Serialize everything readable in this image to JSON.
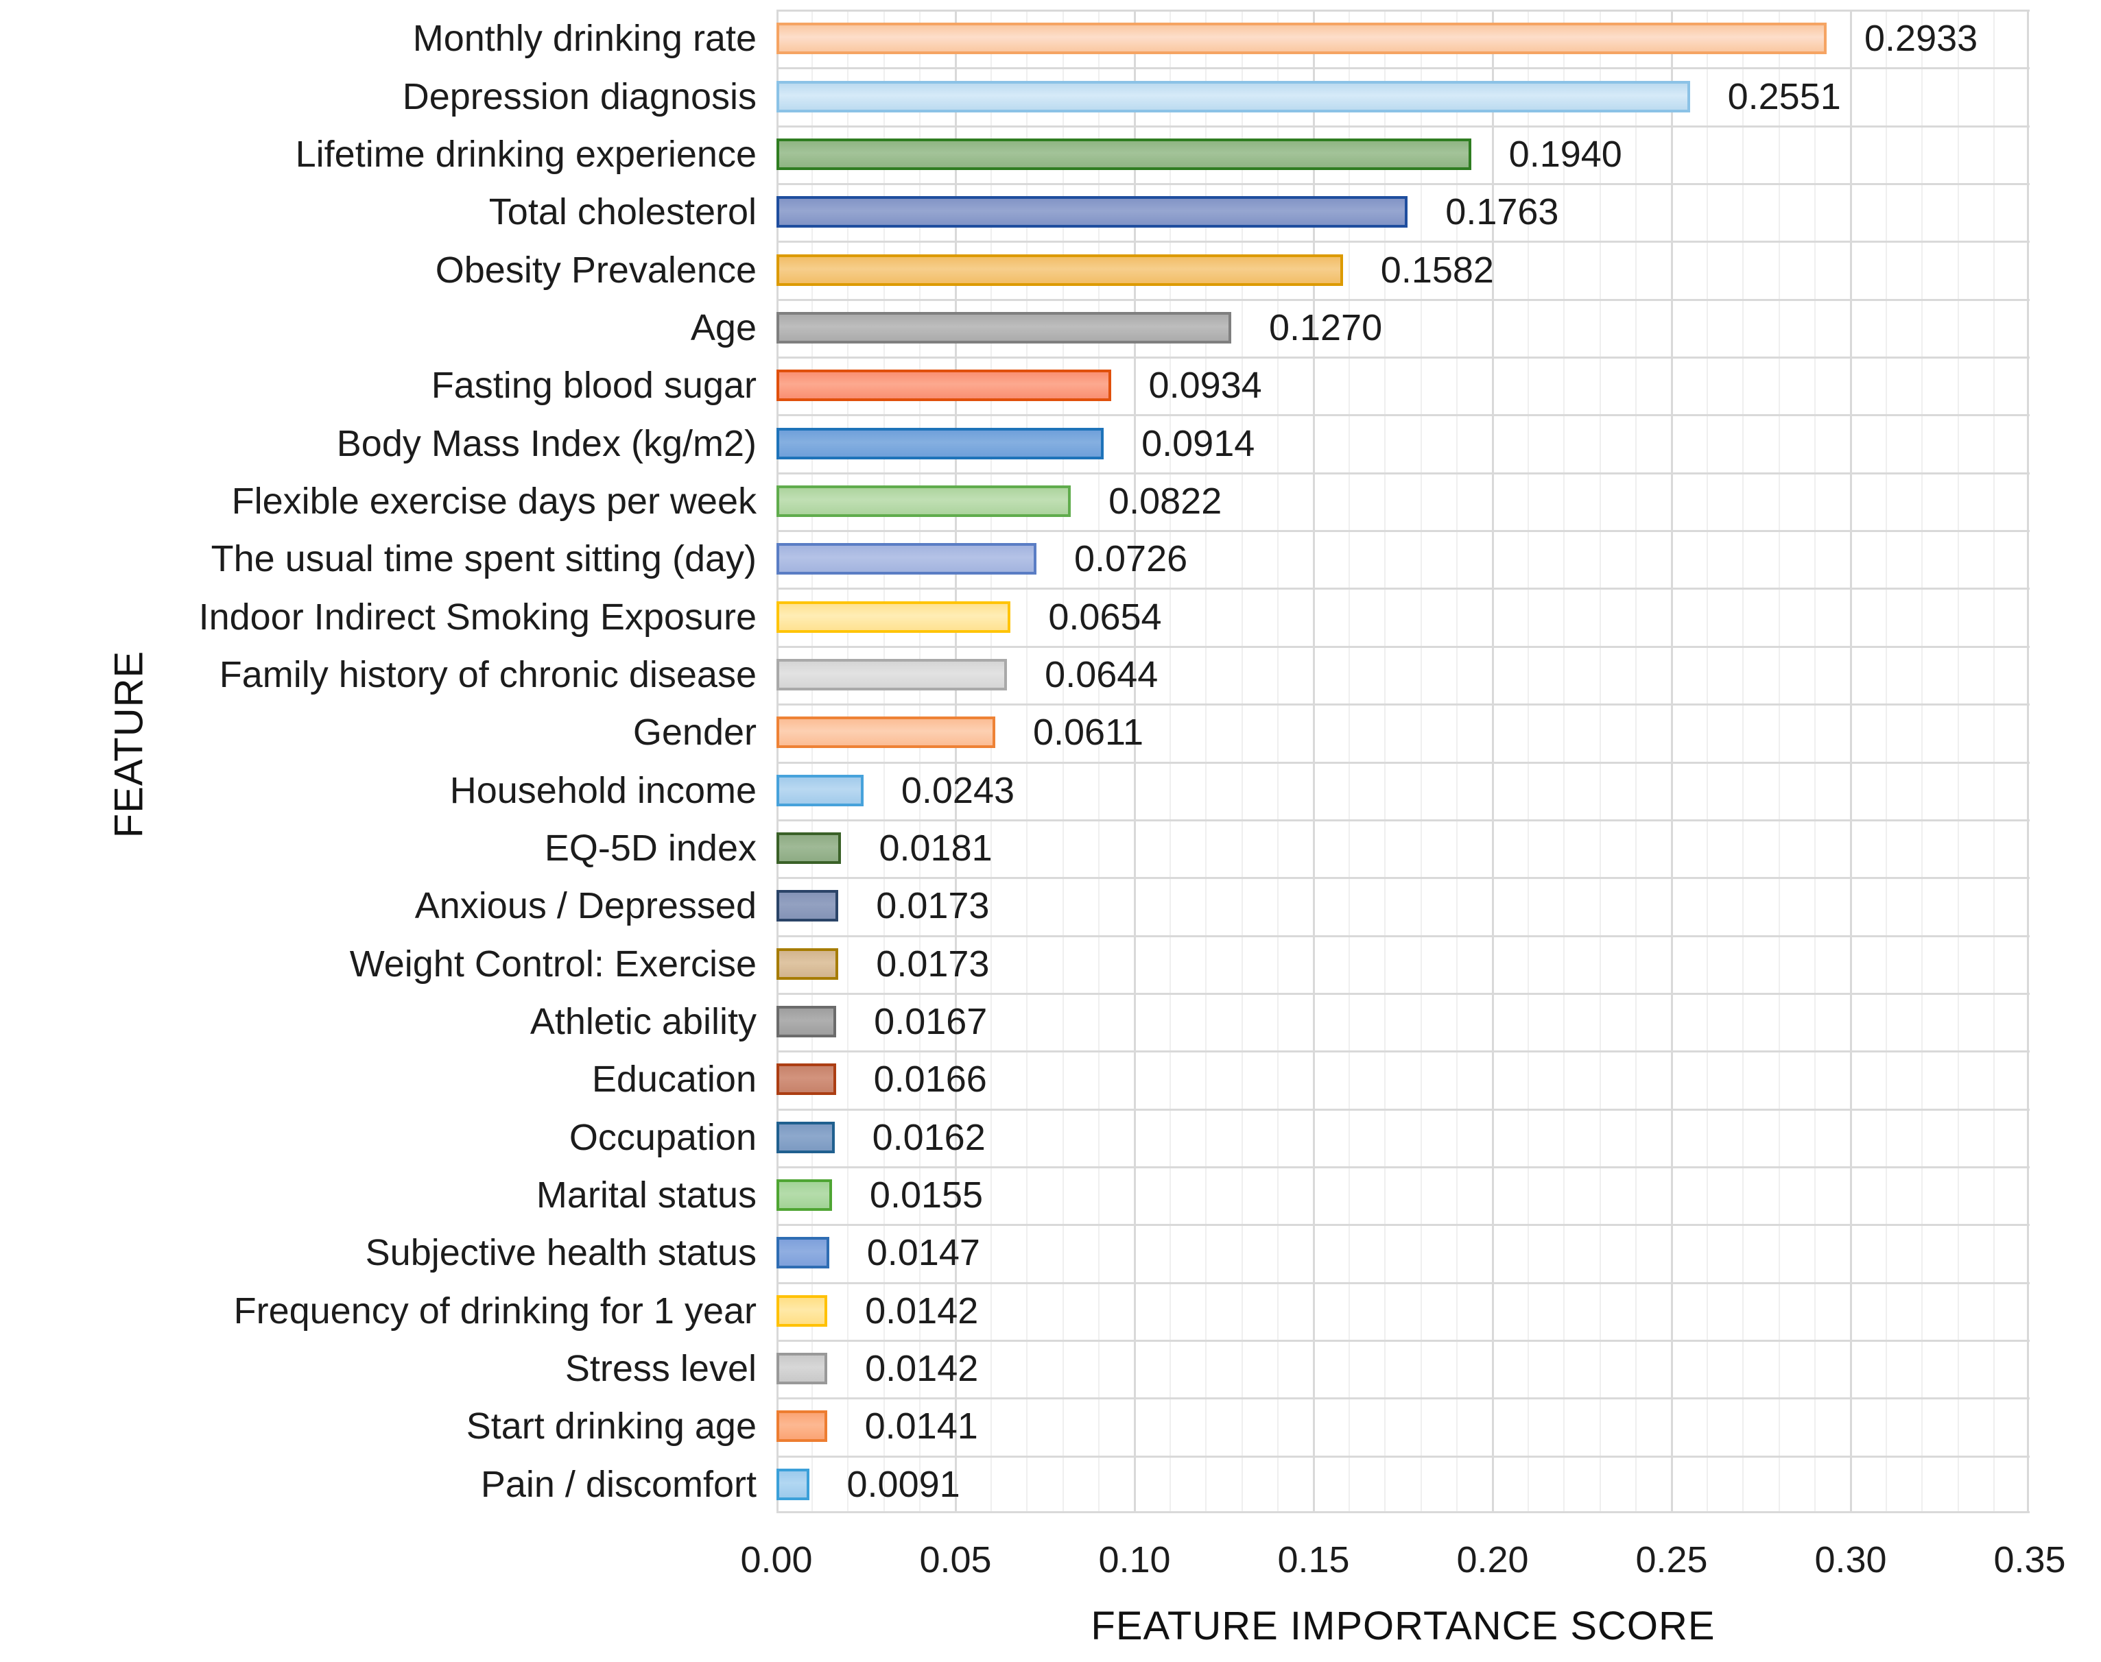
{
  "chart_data": {
    "type": "bar",
    "orientation": "horizontal",
    "xlabel": "FEATURE IMPORTANCE SCORE",
    "ylabel": "FEATURE",
    "xlim": [
      0.0,
      0.35
    ],
    "x_major_tick": 0.05,
    "x_minor_tick": 0.01,
    "grid": {
      "major_color": "#d9d9d9",
      "minor_color": "#efefef",
      "background": "#ffffff"
    },
    "legend": "none",
    "x_tick_labels": [
      "0.00",
      "0.05",
      "0.10",
      "0.15",
      "0.20",
      "0.25",
      "0.30",
      "0.35"
    ],
    "categories": [
      "Monthly drinking rate",
      "Depression diagnosis",
      "Lifetime drinking experience",
      "Total cholesterol",
      "Obesity Prevalence",
      "Age",
      "Fasting blood sugar",
      "Body Mass Index (kg/m2)",
      "Flexible exercise days per week",
      "The usual time spent sitting (day)",
      "Indoor Indirect Smoking Exposure",
      "Family history of chronic disease",
      "Gender",
      "Household income",
      "EQ-5D index",
      "Anxious / Depressed",
      "Weight Control: Exercise",
      "Athletic ability",
      "Education",
      "Occupation",
      "Marital status",
      "Subjective health status",
      "Frequency of drinking for 1 year",
      "Stress level",
      "Start drinking age",
      "Pain / discomfort"
    ],
    "values": [
      0.2933,
      0.2551,
      0.194,
      0.1763,
      0.1582,
      0.127,
      0.0934,
      0.0914,
      0.0822,
      0.0726,
      0.0654,
      0.0644,
      0.0611,
      0.0243,
      0.0181,
      0.0173,
      0.0173,
      0.0167,
      0.0166,
      0.0162,
      0.0155,
      0.0147,
      0.0142,
      0.0142,
      0.0141,
      0.0091
    ],
    "value_labels": [
      "0.2933",
      "0.2551",
      "0.1940",
      "0.1763",
      "0.1582",
      "0.1270",
      "0.0934",
      "0.0914",
      "0.0822",
      "0.0726",
      "0.0654",
      "0.0644",
      "0.0611",
      "0.0243",
      "0.0181",
      "0.0173",
      "0.0173",
      "0.0167",
      "0.0166",
      "0.0162",
      "0.0155",
      "0.0147",
      "0.0142",
      "0.0142",
      "0.0141",
      "0.0091"
    ],
    "bar_styles": [
      {
        "fill": "#fac8a2",
        "fill_light": "#fddeca",
        "border": "#f5a463"
      },
      {
        "fill": "#bcdbf0",
        "fill_light": "#d6eaf8",
        "border": "#8bc2e6"
      },
      {
        "fill": "#8fb583",
        "fill_light": "#a3c399",
        "border": "#2f7d21"
      },
      {
        "fill": "#8294c6",
        "fill_light": "#96a6d0",
        "border": "#1f4e9e"
      },
      {
        "fill": "#f2be67",
        "fill_light": "#f6ce8c",
        "border": "#dc9a00"
      },
      {
        "fill": "#ababab",
        "fill_light": "#bdbdbd",
        "border": "#7f7f7f"
      },
      {
        "fill": "#fa8f72",
        "fill_light": "#fca98f",
        "border": "#e0500c"
      },
      {
        "fill": "#6fa0da",
        "fill_light": "#85afe0",
        "border": "#1e73b9"
      },
      {
        "fill": "#add49e",
        "fill_light": "#c0dfb4",
        "border": "#60ac4d"
      },
      {
        "fill": "#a3b4df",
        "fill_light": "#b4c2e6",
        "border": "#5a7dc4"
      },
      {
        "fill": "#ffe291",
        "fill_light": "#ffedb5",
        "border": "#ffc408"
      },
      {
        "fill": "#d5d5d5",
        "fill_light": "#e2e2e2",
        "border": "#a9a9a9"
      },
      {
        "fill": "#fbbd95",
        "fill_light": "#fdd0b2",
        "border": "#ee8236"
      },
      {
        "fill": "#a2cbeb",
        "fill_light": "#b9d8f1",
        "border": "#47a2db"
      },
      {
        "fill": "#8eac84",
        "fill_light": "#9fb996",
        "border": "#3a6128"
      },
      {
        "fill": "#8493b6",
        "fill_light": "#93a1c1",
        "border": "#2b4468"
      },
      {
        "fill": "#d2b48d",
        "fill_light": "#dfc5a3",
        "border": "#a67c00"
      },
      {
        "fill": "#9e9e9e",
        "fill_light": "#afafaf",
        "border": "#6b6b6b"
      },
      {
        "fill": "#c7826a",
        "fill_light": "#d2937d",
        "border": "#ac3e13"
      },
      {
        "fill": "#7c9ac2",
        "fill_light": "#8da8cc",
        "border": "#20608f"
      },
      {
        "fill": "#a2d396",
        "fill_light": "#b5dcab",
        "border": "#4fa533"
      },
      {
        "fill": "#7ea0db",
        "fill_light": "#90aee1",
        "border": "#2f6db3"
      },
      {
        "fill": "#ffdf85",
        "fill_light": "#ffe9a8",
        "border": "#ffc103"
      },
      {
        "fill": "#c9c9c9",
        "fill_light": "#d7d7d7",
        "border": "#999999"
      },
      {
        "fill": "#fba474",
        "fill_light": "#fcb892",
        "border": "#ed7d31"
      },
      {
        "fill": "#9ccaec",
        "fill_light": "#b2d7f2",
        "border": "#3ba0d9"
      }
    ]
  }
}
